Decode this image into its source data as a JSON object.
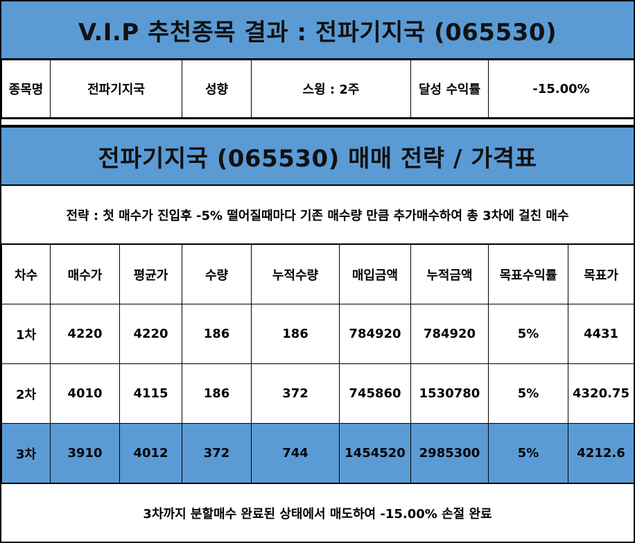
{
  "header": {
    "title": "V.I.P 추천종목 결과 : 전파기지국 (065530)"
  },
  "info": {
    "name_label": "종목명",
    "name_value": "전파기지국",
    "style_label": "성향",
    "style_value": "스윙 : 2주",
    "return_label": "달성 수익률",
    "return_value": "-15.00%"
  },
  "strategy_header": {
    "title": "전파기지국 (065530) 매매 전략 / 가격표"
  },
  "strategy": {
    "text": "전략 : 첫 매수가 진입후 -5% 떨어질때마다 기존 매수량 만큼 추가매수하여 총 3차에 걸친 매수"
  },
  "table": {
    "headers": [
      "차수",
      "매수가",
      "평균가",
      "수량",
      "누적수량",
      "매입금액",
      "누적금액",
      "목표수익률",
      "목표가"
    ],
    "rows": [
      [
        "1차",
        "4220",
        "4220",
        "186",
        "186",
        "784920",
        "784920",
        "5%",
        "4431"
      ],
      [
        "2차",
        "4010",
        "4115",
        "186",
        "372",
        "745860",
        "1530780",
        "5%",
        "4320.75"
      ],
      [
        "3차",
        "3910",
        "4012",
        "372",
        "744",
        "1454520",
        "2985300",
        "5%",
        "4212.6"
      ]
    ],
    "highlight_color": "#5b9bd5"
  },
  "result": {
    "text": "3차까지 분할매수 완료된 상태에서 매도하여 -15.00% 손절 완료"
  },
  "colors": {
    "accent": "#5b9bd5",
    "border": "#000000",
    "background": "#ffffff"
  }
}
